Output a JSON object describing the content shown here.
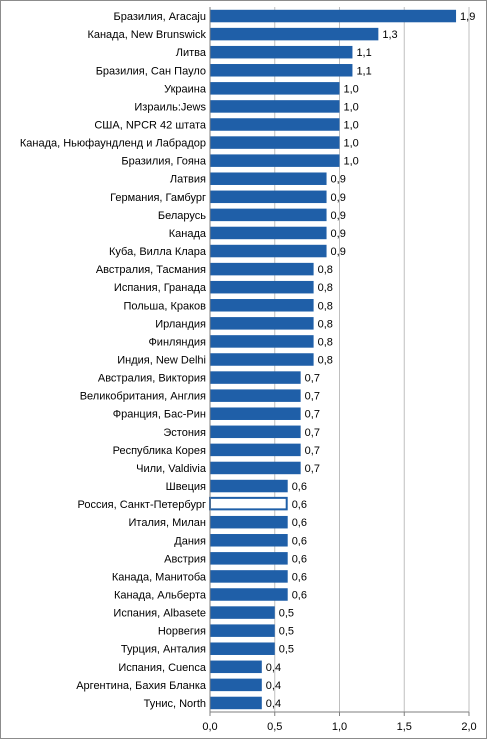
{
  "chart_data": {
    "type": "bar",
    "orientation": "horizontal",
    "categories": [
      "Бразилия, Aracaju",
      "Канада, New Brunswick",
      "Литва",
      "Бразилия, Сан Пауло",
      "Украина",
      "Израиль:Jews",
      "США, NPCR 42 штата",
      "Канада, Ньюфаундленд и Лабрадор",
      "Бразилия, Гояна",
      "Латвия",
      "Германия, Гамбург",
      "Беларусь",
      "Канада",
      "Куба, Вилла Клара",
      "Австралия, Тасмания",
      "Испания, Гранада",
      "Польша, Краков",
      "Ирландия",
      "Финляндия",
      "Индия, New Delhi",
      "Австралия, Виктория",
      "Великобритания, Англия",
      "Франция, Бас-Рин",
      "Эстония",
      "Республика Корея",
      "Чили, Valdivia",
      "Швеция",
      "Россия, Санкт-Петербург",
      "Италия, Милан",
      "Дания",
      "Австрия",
      "Канада, Манитоба",
      "Канада, Альберта",
      "Испания, Albasete",
      "Норвегия",
      "Турция, Анталия",
      "Испания, Cuenca",
      "Аргентина, Бахия Бланка",
      "Тунис, North"
    ],
    "values": [
      1.9,
      1.3,
      1.1,
      1.1,
      1.0,
      1.0,
      1.0,
      1.0,
      1.0,
      0.9,
      0.9,
      0.9,
      0.9,
      0.9,
      0.8,
      0.8,
      0.8,
      0.8,
      0.8,
      0.8,
      0.7,
      0.7,
      0.7,
      0.7,
      0.7,
      0.7,
      0.6,
      0.6,
      0.6,
      0.6,
      0.6,
      0.6,
      0.6,
      0.5,
      0.5,
      0.5,
      0.4,
      0.4,
      0.4
    ],
    "value_labels": [
      "1,9",
      "1,3",
      "1,1",
      "1,1",
      "1,0",
      "1,0",
      "1,0",
      "1,0",
      "1,0",
      "0,9",
      "0,9",
      "0,9",
      "0,9",
      "0,9",
      "0,8",
      "0,8",
      "0,8",
      "0,8",
      "0,8",
      "0,8",
      "0,7",
      "0,7",
      "0,7",
      "0,7",
      "0,7",
      "0,7",
      "0,6",
      "0,6",
      "0,6",
      "0,6",
      "0,6",
      "0,6",
      "0,6",
      "0,5",
      "0,5",
      "0,5",
      "0,4",
      "0,4",
      "0,4"
    ],
    "highlighted_category": "Россия, Санкт-Петербург",
    "xlim": [
      0,
      2.0
    ],
    "x_ticks": [
      0,
      0.5,
      1.0,
      1.5,
      2.0
    ],
    "x_tick_labels": [
      "0,0",
      "0,5",
      "1,0",
      "1,5",
      "2,0"
    ],
    "grid": "vertical",
    "legend": "none",
    "title": "",
    "xlabel": "",
    "ylabel": "",
    "colors": {
      "bar": "#1f5fa8",
      "highlight_fill": "#ffffff",
      "grid": "#bfbfbf"
    }
  }
}
